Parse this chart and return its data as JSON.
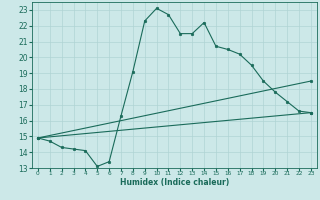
{
  "xlabel": "Humidex (Indice chaleur)",
  "bg_color": "#cce8e8",
  "grid_color": "#b0d4d4",
  "line_color": "#1a6b5a",
  "xlim": [
    -0.5,
    23.5
  ],
  "ylim": [
    13,
    23.5
  ],
  "yticks": [
    13,
    14,
    15,
    16,
    17,
    18,
    19,
    20,
    21,
    22,
    23
  ],
  "xticks": [
    0,
    1,
    2,
    3,
    4,
    5,
    6,
    7,
    8,
    9,
    10,
    11,
    12,
    13,
    14,
    15,
    16,
    17,
    18,
    19,
    20,
    21,
    22,
    23
  ],
  "line1_x": [
    0,
    1,
    2,
    3,
    4,
    5,
    6,
    7,
    8,
    9,
    10,
    11,
    12,
    13,
    14,
    15,
    16,
    17,
    18,
    19,
    20,
    21,
    22,
    23
  ],
  "line1_y": [
    14.9,
    14.7,
    14.3,
    14.2,
    14.1,
    13.1,
    13.4,
    16.3,
    19.1,
    22.3,
    23.1,
    22.7,
    21.5,
    21.5,
    22.2,
    20.7,
    20.5,
    20.2,
    19.5,
    18.5,
    17.8,
    17.2,
    16.6,
    16.5
  ],
  "line2_x": [
    0,
    23
  ],
  "line2_y": [
    14.9,
    16.5
  ],
  "line3_x": [
    0,
    23
  ],
  "line3_y": [
    14.9,
    18.5
  ]
}
